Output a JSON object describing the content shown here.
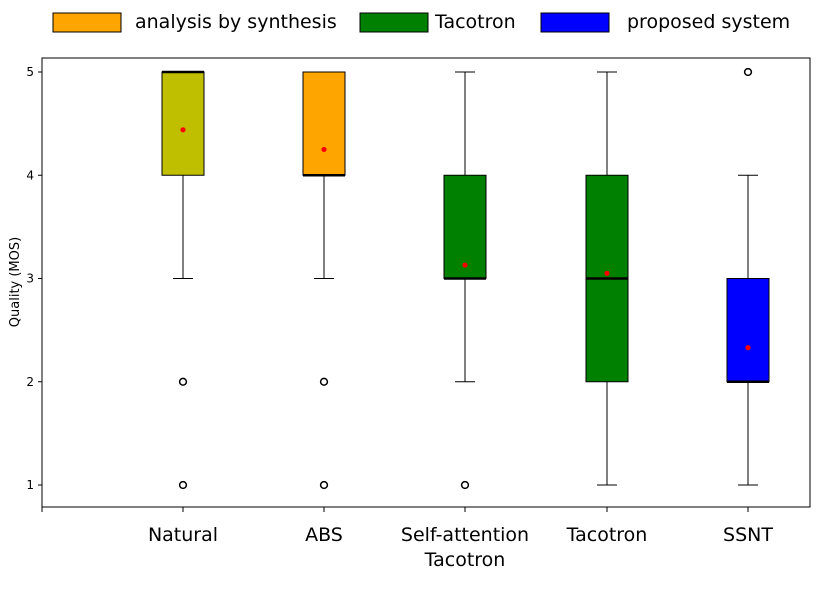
{
  "chart_data": {
    "type": "box",
    "title": "",
    "xlabel": "",
    "ylabel": "Quality (MOS)",
    "ylim": [
      0.8,
      5.15
    ],
    "yticks": [
      1,
      2,
      3,
      4,
      5
    ],
    "grid": false,
    "legend_position": "top",
    "legend": [
      {
        "label": "analysis by synthesis",
        "color": "#FFA500"
      },
      {
        "label": "Tacotron",
        "color": "#008000"
      },
      {
        "label": "proposed system",
        "color": "#0000FF"
      }
    ],
    "categories": [
      {
        "lines": [
          "Natural"
        ]
      },
      {
        "lines": [
          "ABS"
        ]
      },
      {
        "lines": [
          "Self-attention",
          "Tacotron"
        ]
      },
      {
        "lines": [
          "Tacotron"
        ]
      },
      {
        "lines": [
          "SSNT"
        ]
      }
    ],
    "boxes": [
      {
        "category": "Natural",
        "color": "#BFBF00",
        "q1": 4,
        "median": 5,
        "q3": 5,
        "whisker_low": 3,
        "whisker_high": 5,
        "mean": 4.44,
        "outliers": [
          2,
          1
        ]
      },
      {
        "category": "ABS",
        "color": "#FFA500",
        "q1": 4,
        "median": 4,
        "q3": 5,
        "whisker_low": 3,
        "whisker_high": 5,
        "mean": 4.25,
        "outliers": [
          2,
          1
        ]
      },
      {
        "category": "Self-attention Tacotron",
        "color": "#008000",
        "q1": 3,
        "median": 3,
        "q3": 4,
        "whisker_low": 2,
        "whisker_high": 5,
        "mean": 3.13,
        "outliers": [
          1
        ]
      },
      {
        "category": "Tacotron",
        "color": "#008000",
        "q1": 2,
        "median": 3,
        "q3": 4,
        "whisker_low": 1,
        "whisker_high": 5,
        "mean": 3.05,
        "outliers": []
      },
      {
        "category": "SSNT",
        "color": "#0000FF",
        "q1": 2,
        "median": 2,
        "q3": 3,
        "whisker_low": 1,
        "whisker_high": 4,
        "mean": 2.33,
        "outliers": [
          5
        ]
      }
    ],
    "mean_marker_color": "#FF0000"
  }
}
